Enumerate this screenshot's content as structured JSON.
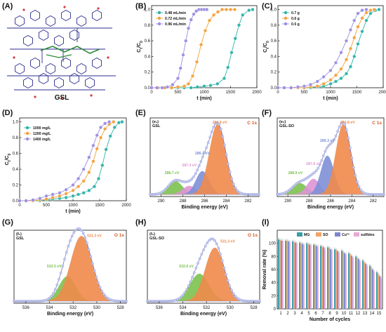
{
  "panel_labels": {
    "A": "(A)",
    "B": "(B)",
    "C": "(C)",
    "D": "(D)",
    "E": "(E)",
    "F": "(F)",
    "G": "(G)",
    "H": "(H)",
    "I": "(I)"
  },
  "structure": {
    "label": "GSL"
  },
  "colors": {
    "teal": "#2db3a9",
    "orange": "#f2a03d",
    "purple": "#9b8ee0",
    "steel": "#8ba6d6",
    "fit": "#6f79c8",
    "c_main": "#f08a4b",
    "c_blue": "#7d8fd6",
    "c_pink": "#df93d6",
    "c_green": "#7cc24e",
    "o_main": "#f08a4b",
    "o_green": "#7cc24e",
    "bar_mg": "#3a9ea5",
    "bar_so": "#f0a56a",
    "bar_cu": "#7d86cf",
    "bar_sulf": "#e8a9d2",
    "accent_text": "#d25a22",
    "nav": "#2b2d8f"
  },
  "chart_data": [
    {
      "id": "B",
      "type": "line",
      "xlabel": "t (min)",
      "ylabel": "Ct/C0",
      "xlim": [
        0,
        2000
      ],
      "ylim": [
        0,
        1.05
      ],
      "xticks": [
        "0",
        "500",
        "1000",
        "1500",
        "2000"
      ],
      "yticks": [
        "0.0",
        "0.2",
        "0.4",
        "0.6",
        "0.8",
        "1.0"
      ],
      "legend_position": "top-left",
      "series": [
        {
          "name": "0.48 mL/min",
          "color": "#2db3a9",
          "x": [
            0,
            120,
            250,
            380,
            500,
            620,
            750,
            870,
            1000,
            1120,
            1250,
            1380,
            1450,
            1520,
            1590,
            1660,
            1730,
            1850,
            1920
          ],
          "y": [
            0,
            0,
            0,
            0,
            0,
            0,
            0,
            0.01,
            0.02,
            0.03,
            0.05,
            0.12,
            0.26,
            0.45,
            0.63,
            0.8,
            0.93,
            0.99,
            1.0
          ]
        },
        {
          "name": "0.72 mL/min",
          "color": "#f2a03d",
          "x": [
            0,
            120,
            250,
            380,
            500,
            620,
            700,
            780,
            860,
            940,
            1020,
            1100,
            1180,
            1260,
            1340,
            1420,
            1500,
            1580
          ],
          "y": [
            0,
            0,
            0,
            0,
            0.01,
            0.02,
            0.05,
            0.15,
            0.33,
            0.55,
            0.73,
            0.86,
            0.93,
            0.97,
            1.0,
            1.0,
            1.0,
            1.0
          ]
        },
        {
          "name": "0.96 mL/min",
          "color": "#9b8ee0",
          "x": [
            0,
            100,
            200,
            300,
            400,
            500,
            550,
            600,
            650,
            700,
            750,
            800,
            850,
            900,
            950,
            1000,
            1050
          ],
          "y": [
            0,
            0,
            0,
            0.01,
            0.04,
            0.12,
            0.25,
            0.42,
            0.6,
            0.76,
            0.87,
            0.94,
            0.98,
            1.0,
            1.0,
            1.0,
            1.0
          ]
        }
      ]
    },
    {
      "id": "C",
      "type": "line",
      "xlabel": "t (min)",
      "ylabel": "Ct/C0",
      "xlim": [
        0,
        2000
      ],
      "ylim": [
        0,
        1.05
      ],
      "xticks": [
        "0",
        "500",
        "1000",
        "1500",
        "2000"
      ],
      "yticks": [
        "0.0",
        "0.2",
        "0.4",
        "0.6",
        "0.8",
        "1.0"
      ],
      "legend_position": "top-left",
      "series": [
        {
          "name": "0.7 g",
          "color": "#2db3a9",
          "x": [
            0,
            120,
            250,
            380,
            500,
            620,
            750,
            870,
            1000,
            1100,
            1200,
            1300,
            1380,
            1450,
            1520,
            1600,
            1680,
            1760,
            1850,
            1920
          ],
          "y": [
            0,
            0,
            0,
            0,
            0,
            0,
            0.01,
            0.02,
            0.05,
            0.08,
            0.12,
            0.18,
            0.27,
            0.4,
            0.56,
            0.72,
            0.86,
            0.95,
            0.99,
            1.0
          ]
        },
        {
          "name": "0.6 g",
          "color": "#f2a03d",
          "x": [
            0,
            120,
            250,
            380,
            500,
            620,
            750,
            870,
            1000,
            1100,
            1200,
            1300,
            1380,
            1450,
            1520,
            1600,
            1680,
            1760,
            1830
          ],
          "y": [
            0,
            0,
            0,
            0,
            0,
            0.01,
            0.02,
            0.05,
            0.1,
            0.16,
            0.24,
            0.36,
            0.5,
            0.64,
            0.78,
            0.89,
            0.96,
            0.99,
            1.0
          ]
        },
        {
          "name": "0.5 g",
          "color": "#9b8ee0",
          "x": [
            0,
            120,
            250,
            380,
            500,
            620,
            750,
            870,
            1000,
            1100,
            1200,
            1300,
            1380,
            1450,
            1520,
            1600,
            1680
          ],
          "y": [
            0,
            0,
            0,
            0.01,
            0.02,
            0.04,
            0.08,
            0.14,
            0.22,
            0.32,
            0.45,
            0.6,
            0.74,
            0.86,
            0.95,
            0.99,
            1.0
          ]
        }
      ]
    },
    {
      "id": "D",
      "type": "line",
      "xlabel": "t (min)",
      "ylabel": "Ct/C0",
      "xlim": [
        0,
        2000
      ],
      "ylim": [
        0,
        1.05
      ],
      "xticks": [
        "0",
        "500",
        "1000",
        "1500",
        "2000"
      ],
      "yticks": [
        "0.0",
        "0.2",
        "0.4",
        "0.6",
        "0.8",
        "1.0"
      ],
      "legend_position": "top-left",
      "series": [
        {
          "name": "1000 mg/L",
          "color": "#2db3a9",
          "x": [
            0,
            120,
            250,
            380,
            500,
            620,
            750,
            870,
            1000,
            1100,
            1200,
            1300,
            1400,
            1480,
            1550,
            1620,
            1700,
            1780,
            1860,
            1920
          ],
          "y": [
            0,
            0,
            0,
            0,
            0.01,
            0.02,
            0.03,
            0.04,
            0.06,
            0.08,
            0.1,
            0.13,
            0.18,
            0.28,
            0.45,
            0.65,
            0.82,
            0.93,
            0.99,
            1.0
          ]
        },
        {
          "name": "1200 mg/L",
          "color": "#f2a03d",
          "x": [
            0,
            120,
            250,
            380,
            500,
            620,
            750,
            870,
            1000,
            1100,
            1200,
            1300,
            1380,
            1450,
            1520,
            1600,
            1680,
            1760
          ],
          "y": [
            0,
            0,
            0,
            0.01,
            0.02,
            0.04,
            0.06,
            0.09,
            0.13,
            0.18,
            0.25,
            0.36,
            0.5,
            0.66,
            0.8,
            0.91,
            0.97,
            1.0
          ]
        },
        {
          "name": "1400 mg/L",
          "color": "#9b8ee0",
          "x": [
            0,
            120,
            250,
            380,
            500,
            620,
            750,
            870,
            1000,
            1100,
            1200,
            1300,
            1380,
            1450,
            1520,
            1600,
            1680
          ],
          "y": [
            0,
            0,
            0.01,
            0.03,
            0.06,
            0.08,
            0.1,
            0.14,
            0.2,
            0.28,
            0.4,
            0.55,
            0.7,
            0.83,
            0.93,
            0.98,
            1.0
          ]
        }
      ]
    },
    {
      "id": "E",
      "type": "area",
      "xlabel": "Binding energy (eV)",
      "xlim": [
        291,
        281
      ],
      "xticks": [
        "290",
        "288",
        "286",
        "284",
        "282"
      ],
      "corner_tag": "(e₁)",
      "sample": "GSL",
      "element": "C 1s",
      "peaks": [
        {
          "label": "284.8 eV",
          "center": 284.8,
          "height": 1.0,
          "width": 0.75,
          "color": "#f08a4b"
        },
        {
          "label": "286.2 eV",
          "center": 286.2,
          "height": 0.33,
          "width": 0.6,
          "color": "#7d8fd6"
        },
        {
          "label": "287.4 eV",
          "center": 287.4,
          "height": 0.12,
          "width": 0.6,
          "color": "#df93d6"
        },
        {
          "label": "288.7 eV",
          "center": 288.7,
          "height": 0.19,
          "width": 0.65,
          "color": "#7cc24e"
        }
      ]
    },
    {
      "id": "F",
      "type": "area",
      "xlabel": "Binding energy (eV)",
      "xlim": [
        291,
        281
      ],
      "xticks": [
        "290",
        "288",
        "286",
        "284",
        "282"
      ],
      "corner_tag": "(e₂)",
      "sample": "GSL-SO",
      "element": "C 1s",
      "peaks": [
        {
          "label": "284.8 eV",
          "center": 284.8,
          "height": 1.0,
          "width": 0.7,
          "color": "#f08a4b"
        },
        {
          "label": "286.3 eV",
          "center": 286.3,
          "height": 0.55,
          "width": 0.6,
          "color": "#7d8fd6"
        },
        {
          "label": "287.6 eV",
          "center": 287.6,
          "height": 0.22,
          "width": 0.6,
          "color": "#df93d6"
        },
        {
          "label": "288.9 eV",
          "center": 288.9,
          "height": 0.16,
          "width": 0.7,
          "color": "#7cc24e"
        }
      ]
    },
    {
      "id": "G",
      "type": "area",
      "xlabel": "Binding energy (eV)",
      "xlim": [
        537,
        527.5
      ],
      "xticks": [
        "536",
        "534",
        "532",
        "530",
        "528"
      ],
      "corner_tag": "(f₁)",
      "sample": "GSL",
      "element": "O 1s",
      "peaks": [
        {
          "label": "531.3 eV",
          "center": 531.3,
          "height": 1.0,
          "width": 0.9,
          "color": "#f08a4b"
        },
        {
          "label": "532.5 eV",
          "center": 532.5,
          "height": 0.38,
          "width": 0.7,
          "color": "#7cc24e"
        }
      ]
    },
    {
      "id": "H",
      "type": "area",
      "xlabel": "Binding energy (eV)",
      "xlim": [
        537,
        527.5
      ],
      "xticks": [
        "536",
        "534",
        "532",
        "530",
        "528"
      ],
      "corner_tag": "(f₂)",
      "sample": "GSL-SO",
      "element": "O 1s",
      "peaks": [
        {
          "label": "531.3 eV",
          "center": 531.3,
          "height": 0.82,
          "width": 0.8,
          "color": "#f08a4b"
        },
        {
          "label": "532.6 eV",
          "center": 532.6,
          "height": 0.42,
          "width": 0.8,
          "color": "#7cc24e"
        }
      ]
    },
    {
      "id": "I",
      "type": "bar",
      "xlabel": "Number of cycles",
      "ylabel": "Removal rate (%)",
      "ylim": [
        0,
        120
      ],
      "yticks": [
        "0",
        "20",
        "40",
        "60",
        "80",
        "100"
      ],
      "categories": [
        "1",
        "2",
        "3",
        "4",
        "5",
        "6",
        "7",
        "8",
        "9",
        "10",
        "11",
        "12",
        "13",
        "14",
        "15"
      ],
      "legend_position": "top",
      "series": [
        {
          "name": "MG",
          "color": "#3a9ea5",
          "values": [
            106,
            104,
            103,
            101,
            100,
            98,
            96,
            94,
            91,
            89,
            85,
            80,
            74,
            66,
            56
          ]
        },
        {
          "name": "SO",
          "color": "#f0a56a",
          "values": [
            105,
            104,
            102,
            100,
            99,
            97,
            95,
            93,
            90,
            87,
            83,
            78,
            71,
            63,
            53
          ]
        },
        {
          "name": "Cu²⁺",
          "color": "#7d86cf",
          "values": [
            104,
            103,
            101,
            99,
            98,
            96,
            94,
            91,
            88,
            85,
            81,
            76,
            69,
            60,
            50
          ]
        },
        {
          "name": "sulfides",
          "color": "#e8a9d2",
          "values": [
            104,
            102,
            100,
            98,
            97,
            95,
            92,
            89,
            86,
            83,
            78,
            73,
            66,
            57,
            47
          ]
        }
      ]
    }
  ]
}
